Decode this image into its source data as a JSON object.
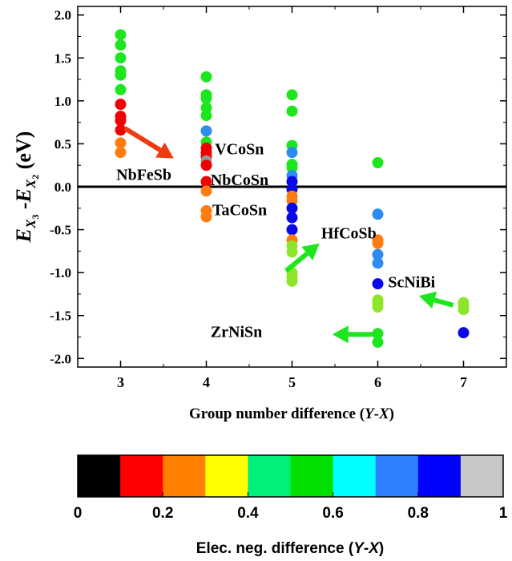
{
  "chart_data": {
    "type": "scatter",
    "xlabel": "Group number difference (Y-X)",
    "xlabel_parts": {
      "main": "Group number difference (",
      "var": "Y",
      "dash": "-",
      "var2": "X",
      "end": ")"
    },
    "ylabel_parts": {
      "e1": "E",
      "s1": "X",
      "ss1": "3",
      "dash": " -",
      "e2": "E",
      "s2": "X",
      "ss2": "2",
      "unit": " (eV)"
    },
    "xlim": [
      2.5,
      7.5
    ],
    "ylim": [
      -2.1,
      2.1
    ],
    "xticks": [
      "3",
      "4",
      "5",
      "6",
      "7"
    ],
    "yticks": [
      "-2.0",
      "-1.5",
      "-1.0",
      "-0.5",
      "0.0",
      "0.5",
      "1.0",
      "1.5",
      "2.0"
    ],
    "grid": false,
    "reference_line_y": 0,
    "colors": {
      "green": "#1ee61e",
      "red": "#f00000",
      "orange": "#ff7d10",
      "lightblue": "#2d8cf0",
      "blue": "#0a0ae6",
      "yellowgreen": "#8ee62a",
      "grey": "#8aa0a0"
    },
    "points": [
      {
        "x": 3,
        "y": 1.77,
        "c": "green"
      },
      {
        "x": 3,
        "y": 1.65,
        "c": "green"
      },
      {
        "x": 3,
        "y": 1.5,
        "c": "green"
      },
      {
        "x": 3,
        "y": 1.35,
        "c": "green"
      },
      {
        "x": 3,
        "y": 1.3,
        "c": "green"
      },
      {
        "x": 3,
        "y": 1.13,
        "c": "green"
      },
      {
        "x": 3,
        "y": 0.96,
        "c": "red"
      },
      {
        "x": 3,
        "y": 0.82,
        "c": "red"
      },
      {
        "x": 3,
        "y": 0.77,
        "c": "red"
      },
      {
        "x": 3,
        "y": 0.66,
        "c": "red"
      },
      {
        "x": 3,
        "y": 0.51,
        "c": "orange"
      },
      {
        "x": 3,
        "y": 0.4,
        "c": "orange"
      },
      {
        "x": 4,
        "y": 1.28,
        "c": "green"
      },
      {
        "x": 4,
        "y": 1.07,
        "c": "green"
      },
      {
        "x": 4,
        "y": 1.03,
        "c": "green"
      },
      {
        "x": 4,
        "y": 0.92,
        "c": "green"
      },
      {
        "x": 4,
        "y": 0.83,
        "c": "green"
      },
      {
        "x": 4,
        "y": 0.65,
        "c": "lightblue"
      },
      {
        "x": 4,
        "y": 0.52,
        "c": "green"
      },
      {
        "x": 4,
        "y": 0.45,
        "c": "red"
      },
      {
        "x": 4,
        "y": 0.4,
        "c": "red"
      },
      {
        "x": 4,
        "y": 0.35,
        "c": "red"
      },
      {
        "x": 4,
        "y": 0.3,
        "c": "grey"
      },
      {
        "x": 4,
        "y": 0.25,
        "c": "red"
      },
      {
        "x": 4,
        "y": 0.06,
        "c": "red"
      },
      {
        "x": 4,
        "y": -0.05,
        "c": "orange"
      },
      {
        "x": 4,
        "y": -0.28,
        "c": "orange"
      },
      {
        "x": 4,
        "y": -0.35,
        "c": "orange"
      },
      {
        "x": 5,
        "y": 1.07,
        "c": "green"
      },
      {
        "x": 5,
        "y": 0.88,
        "c": "green"
      },
      {
        "x": 5,
        "y": 0.48,
        "c": "green"
      },
      {
        "x": 5,
        "y": 0.4,
        "c": "lightblue"
      },
      {
        "x": 5,
        "y": 0.26,
        "c": "green"
      },
      {
        "x": 5,
        "y": 0.22,
        "c": "green"
      },
      {
        "x": 5,
        "y": 0.13,
        "c": "lightblue"
      },
      {
        "x": 5,
        "y": 0.06,
        "c": "blue"
      },
      {
        "x": 5,
        "y": -0.03,
        "c": "blue"
      },
      {
        "x": 5,
        "y": -0.11,
        "c": "orange"
      },
      {
        "x": 5,
        "y": -0.16,
        "c": "orange"
      },
      {
        "x": 5,
        "y": -0.25,
        "c": "blue"
      },
      {
        "x": 5,
        "y": -0.36,
        "c": "blue"
      },
      {
        "x": 5,
        "y": -0.5,
        "c": "blue"
      },
      {
        "x": 5,
        "y": -0.62,
        "c": "orange"
      },
      {
        "x": 5,
        "y": -0.69,
        "c": "yellowgreen"
      },
      {
        "x": 5,
        "y": -0.76,
        "c": "yellowgreen"
      },
      {
        "x": 5,
        "y": -1.0,
        "c": "yellowgreen"
      },
      {
        "x": 5,
        "y": -1.05,
        "c": "yellowgreen"
      },
      {
        "x": 5,
        "y": -1.1,
        "c": "yellowgreen"
      },
      {
        "x": 6,
        "y": 0.28,
        "c": "green"
      },
      {
        "x": 6,
        "y": -0.32,
        "c": "lightblue"
      },
      {
        "x": 6,
        "y": -0.62,
        "c": "orange"
      },
      {
        "x": 6,
        "y": -0.66,
        "c": "orange"
      },
      {
        "x": 6,
        "y": -0.79,
        "c": "lightblue"
      },
      {
        "x": 6,
        "y": -0.89,
        "c": "lightblue"
      },
      {
        "x": 6,
        "y": -1.13,
        "c": "blue"
      },
      {
        "x": 6,
        "y": -1.32,
        "c": "yellowgreen"
      },
      {
        "x": 6,
        "y": -1.36,
        "c": "yellowgreen"
      },
      {
        "x": 6,
        "y": -1.4,
        "c": "yellowgreen"
      },
      {
        "x": 6,
        "y": -1.71,
        "c": "green"
      },
      {
        "x": 6,
        "y": -1.81,
        "c": "green"
      },
      {
        "x": 7,
        "y": -1.35,
        "c": "yellowgreen"
      },
      {
        "x": 7,
        "y": -1.39,
        "c": "yellowgreen"
      },
      {
        "x": 7,
        "y": -1.43,
        "c": "yellowgreen"
      },
      {
        "x": 7,
        "y": -1.7,
        "c": "blue"
      }
    ],
    "annotations": [
      {
        "text": "NbFeSb",
        "x": 2.95,
        "y": 0.08,
        "arrow": {
          "from": [
            3.05,
            0.68
          ],
          "to": [
            3.62,
            0.33
          ]
        },
        "arrow_color": "#f03a10"
      },
      {
        "text": "VCoSn",
        "x": 4.1,
        "y": 0.38
      },
      {
        "text": "NbCoSn",
        "x": 4.05,
        "y": 0.02
      },
      {
        "text": "TaCoSn",
        "x": 4.07,
        "y": -0.33
      },
      {
        "text": "HfCoSb",
        "x": 5.34,
        "y": -0.6,
        "arrow": {
          "from": [
            4.93,
            -0.98
          ],
          "to": [
            5.32,
            -0.66
          ]
        },
        "arrow_color": "#1ee61e"
      },
      {
        "text": "ScNiBi",
        "x": 6.12,
        "y": -1.17,
        "arrow": {
          "from": [
            6.88,
            -1.38
          ],
          "to": [
            6.48,
            -1.27
          ]
        },
        "arrow_color": "#1ee61e"
      },
      {
        "text": "ZrNiSn",
        "x": 4.05,
        "y": -1.75,
        "arrow": {
          "from": [
            5.97,
            -1.72
          ],
          "to": [
            5.47,
            -1.72
          ]
        },
        "arrow_color": "#1ee61e"
      }
    ],
    "colorbar": {
      "colors": [
        "#000000",
        "#ff0000",
        "#ff7f00",
        "#ffff00",
        "#00f07a",
        "#00e000",
        "#00ffff",
        "#3080ff",
        "#0000ff",
        "#c8c8c8"
      ],
      "ticks": [
        "0",
        "0.2",
        "0.4",
        "0.6",
        "0.8",
        "1"
      ],
      "label_parts": {
        "main": "Elec. neg. difference (",
        "var": "Y",
        "dash": "-",
        "var2": "X",
        "end": ")"
      }
    }
  }
}
